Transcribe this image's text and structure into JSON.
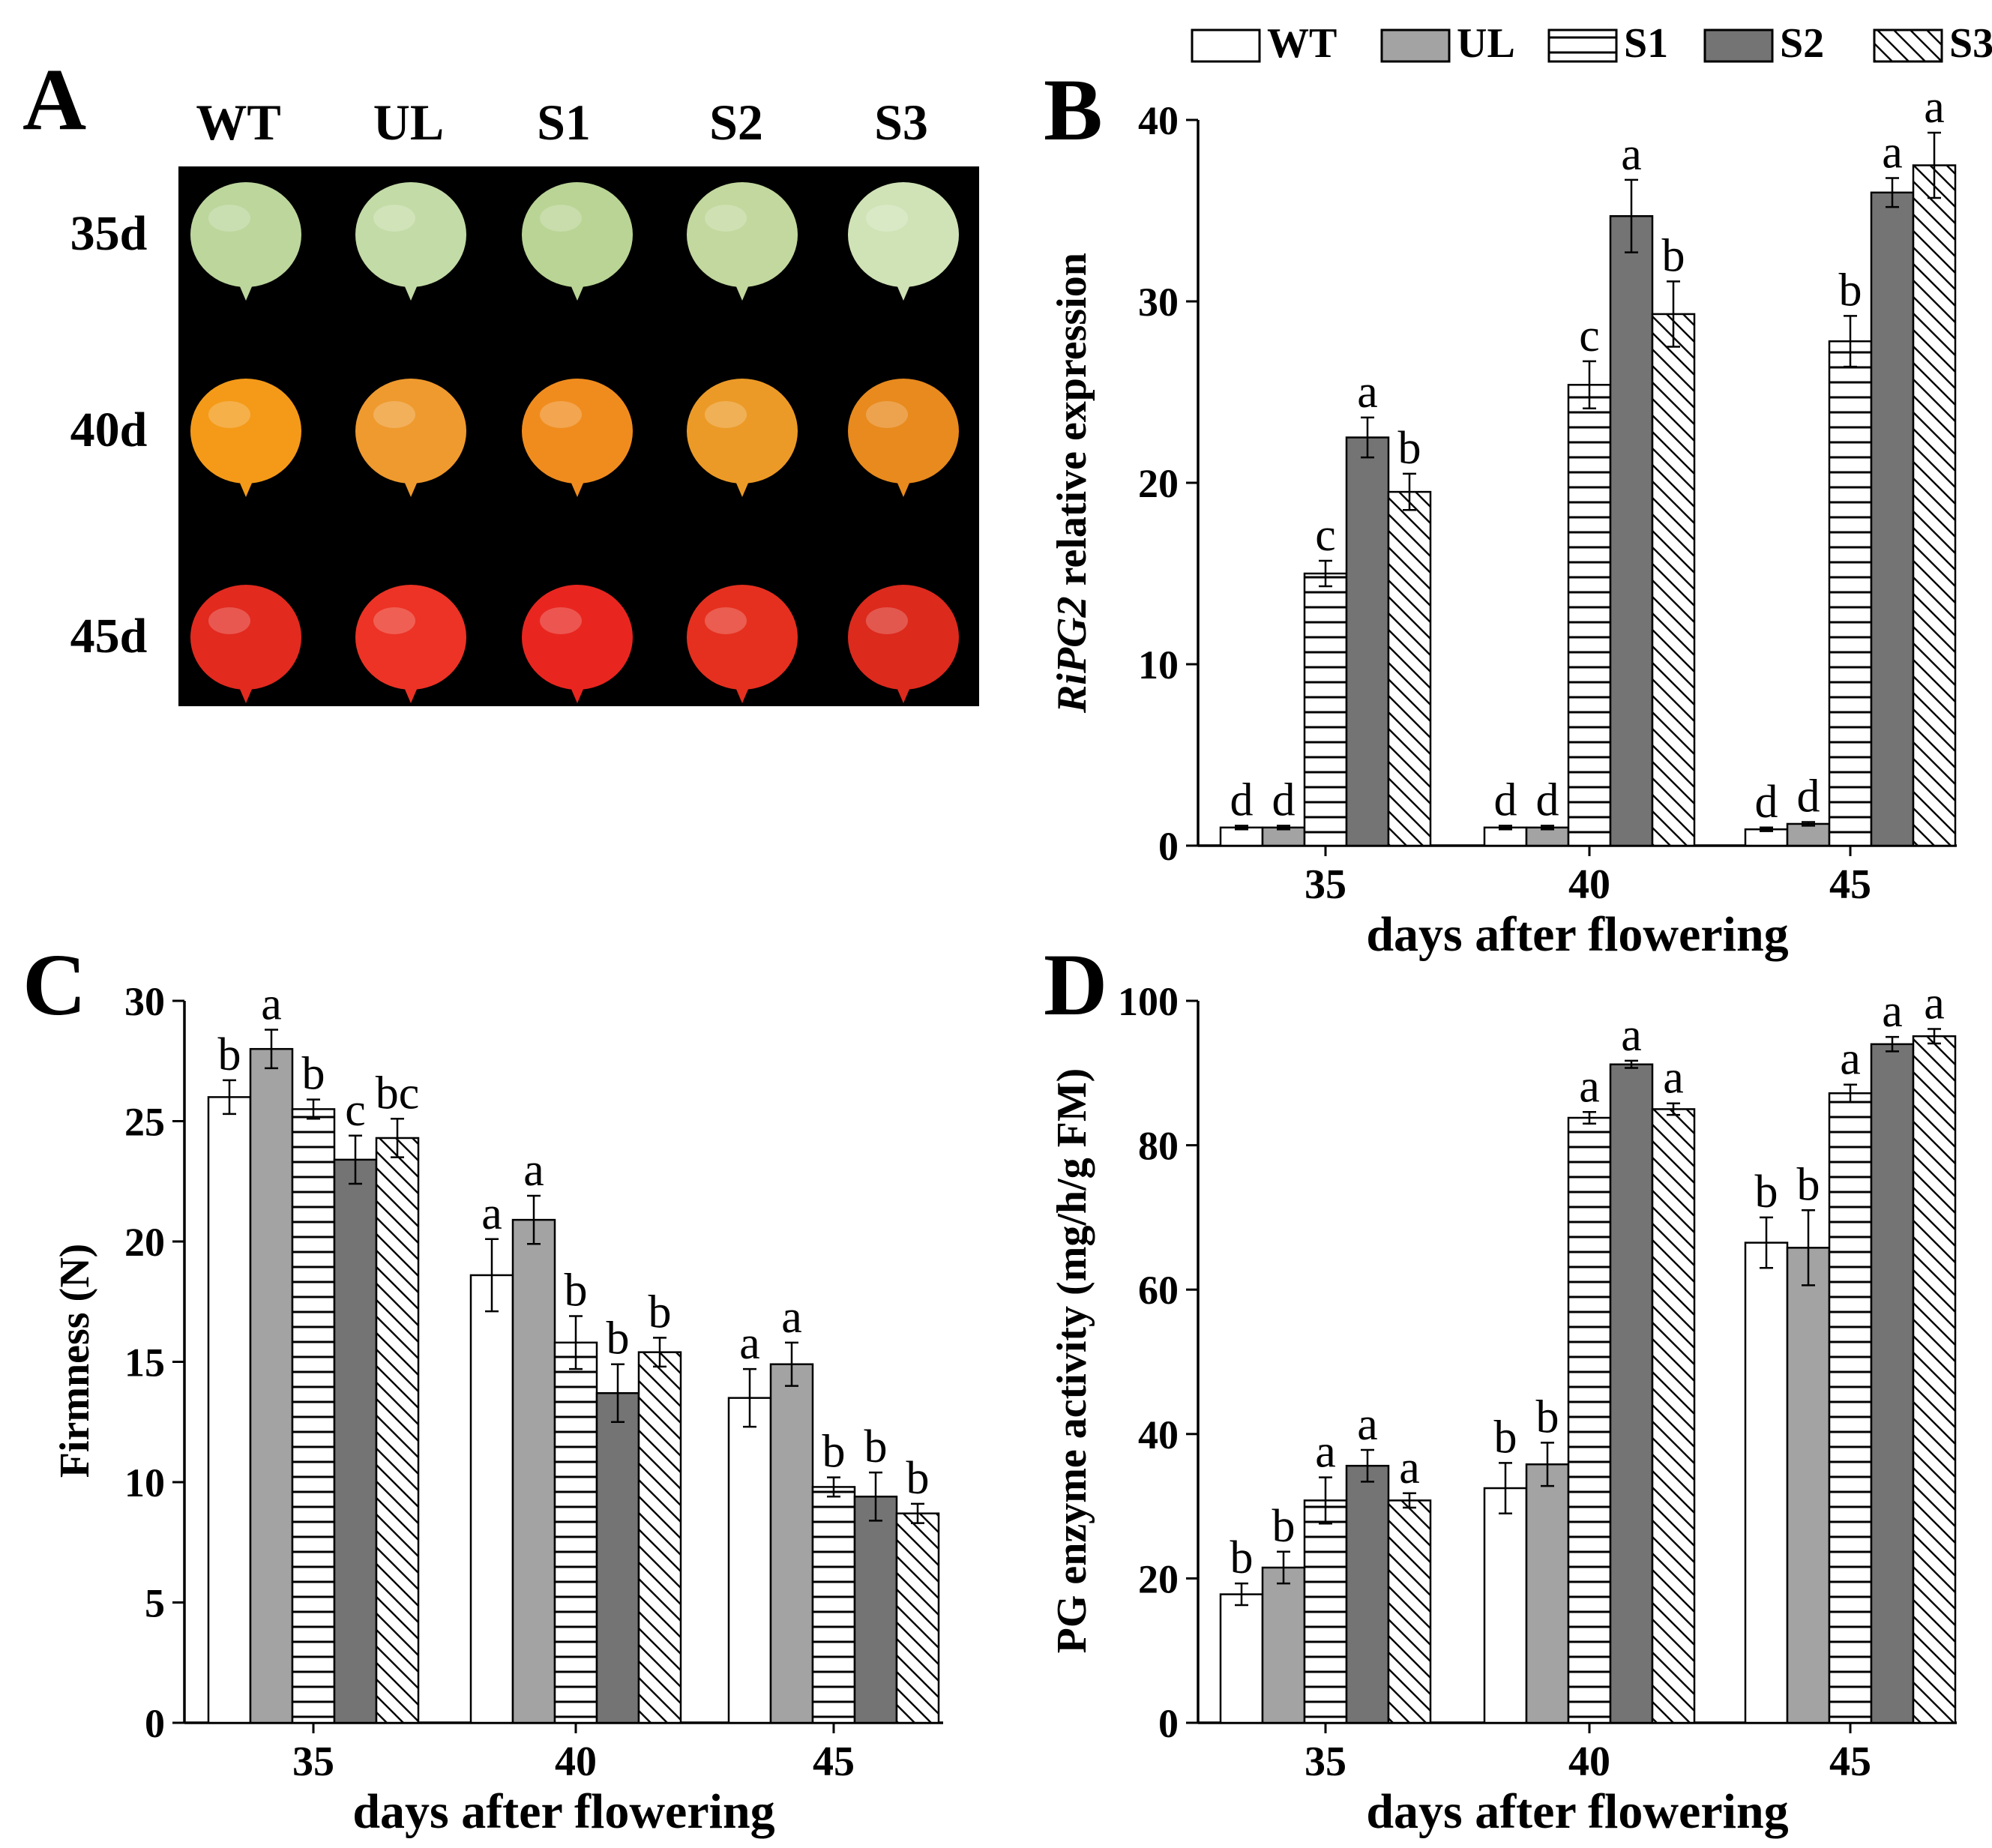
{
  "legend": [
    {
      "key": "WT",
      "label": "WT",
      "style": "white"
    },
    {
      "key": "UL",
      "label": "UL",
      "style": "lightgray"
    },
    {
      "key": "S1",
      "label": "S1",
      "style": "hlines"
    },
    {
      "key": "S2",
      "label": "S2",
      "style": "darkgray"
    },
    {
      "key": "S3",
      "label": "S3",
      "style": "diag"
    }
  ],
  "colors": {
    "light_gray": "#a3a3a3",
    "dark_gray": "#747474",
    "fruit_bg": "#000000"
  },
  "panel_a": {
    "letter": "A",
    "columns": [
      "WT",
      "UL",
      "S1",
      "S2",
      "S3"
    ],
    "rows": [
      "35d",
      "40d",
      "45d"
    ],
    "fruit_colors": {
      "35d": [
        "#bcd69c",
        "#c3dba6",
        "#b9d494",
        "#c2d89e",
        "#cfe3b6"
      ],
      "40d": [
        "#f49a18",
        "#ef9a2e",
        "#f08c1e",
        "#ec9a27",
        "#e88a1d"
      ],
      "45d": [
        "#e22a1f",
        "#ec3325",
        "#e8261f",
        "#e5301f",
        "#dc2a1d"
      ]
    }
  },
  "chart_data": [
    {
      "panel": "B",
      "type": "bar",
      "categories": [
        "35",
        "40",
        "45"
      ],
      "xlabel": "days after flowering",
      "ylabel_italic": "RiPG2",
      "ylabel_rest": " relative expression",
      "ylim": [
        0,
        40
      ],
      "yticks": [
        0,
        10,
        20,
        30,
        40
      ],
      "series": [
        {
          "name": "WT",
          "values": [
            1.0,
            1.0,
            0.9
          ],
          "errors": [
            0.1,
            0.1,
            0.1
          ],
          "letters": [
            "d",
            "d",
            "d"
          ]
        },
        {
          "name": "UL",
          "values": [
            1.0,
            1.0,
            1.2
          ],
          "errors": [
            0.1,
            0.1,
            0.1
          ],
          "letters": [
            "d",
            "d",
            "d"
          ]
        },
        {
          "name": "S1",
          "values": [
            15.0,
            25.4,
            27.8
          ],
          "errors": [
            0.7,
            1.3,
            1.4
          ],
          "letters": [
            "c",
            "c",
            "b"
          ]
        },
        {
          "name": "S2",
          "values": [
            22.5,
            34.7,
            36.0
          ],
          "errors": [
            1.1,
            2.0,
            0.8
          ],
          "letters": [
            "a",
            "a",
            "a"
          ]
        },
        {
          "name": "S3",
          "values": [
            19.5,
            29.3,
            37.5
          ],
          "errors": [
            1.0,
            1.8,
            1.8
          ],
          "letters": [
            "b",
            "b",
            "a"
          ]
        }
      ]
    },
    {
      "panel": "C",
      "type": "bar",
      "categories": [
        "35",
        "40",
        "45"
      ],
      "xlabel": "days after flowering",
      "ylabel": "Firmness (N)",
      "ylim": [
        0,
        30
      ],
      "yticks": [
        0,
        5,
        10,
        15,
        20,
        25,
        30
      ],
      "series": [
        {
          "name": "WT",
          "values": [
            26.0,
            18.6,
            13.5
          ],
          "errors": [
            0.7,
            1.5,
            1.2
          ],
          "letters": [
            "b",
            "a",
            "a"
          ]
        },
        {
          "name": "UL",
          "values": [
            28.0,
            20.9,
            14.9
          ],
          "errors": [
            0.8,
            1.0,
            0.9
          ],
          "letters": [
            "a",
            "a",
            "a"
          ]
        },
        {
          "name": "S1",
          "values": [
            25.5,
            15.8,
            9.8
          ],
          "errors": [
            0.4,
            1.1,
            0.4
          ],
          "letters": [
            "b",
            "b",
            "b"
          ]
        },
        {
          "name": "S2",
          "values": [
            23.4,
            13.7,
            9.4
          ],
          "errors": [
            1.0,
            1.2,
            1.0
          ],
          "letters": [
            "c",
            "b",
            "b"
          ]
        },
        {
          "name": "S3",
          "values": [
            24.3,
            15.4,
            8.7
          ],
          "errors": [
            0.8,
            0.6,
            0.4
          ],
          "letters": [
            "bc",
            "b",
            "b"
          ]
        }
      ]
    },
    {
      "panel": "D",
      "type": "bar",
      "categories": [
        "35",
        "40",
        "45"
      ],
      "xlabel": "days after flowering",
      "ylabel": "PG enzyme activity (mg/h/g FM)",
      "ylim": [
        0,
        100
      ],
      "yticks": [
        0,
        20,
        40,
        60,
        80,
        100
      ],
      "series": [
        {
          "name": "WT",
          "values": [
            17.8,
            32.5,
            66.5
          ],
          "errors": [
            1.5,
            3.5,
            3.5
          ],
          "letters": [
            "b",
            "b",
            "b"
          ]
        },
        {
          "name": "UL",
          "values": [
            21.5,
            35.8,
            65.8
          ],
          "errors": [
            2.2,
            3.0,
            5.2
          ],
          "letters": [
            "b",
            "b",
            "b"
          ]
        },
        {
          "name": "S1",
          "values": [
            30.8,
            83.8,
            87.2
          ],
          "errors": [
            3.2,
            0.8,
            1.2
          ],
          "letters": [
            "a",
            "a",
            "a"
          ]
        },
        {
          "name": "S2",
          "values": [
            35.6,
            91.2,
            94.0
          ],
          "errors": [
            2.2,
            0.5,
            1.0
          ],
          "letters": [
            "a",
            "a",
            "a"
          ]
        },
        {
          "name": "S3",
          "values": [
            30.8,
            85.0,
            95.1
          ],
          "errors": [
            1.0,
            0.8,
            1.0
          ],
          "letters": [
            "a",
            "a",
            "a"
          ]
        }
      ]
    }
  ]
}
